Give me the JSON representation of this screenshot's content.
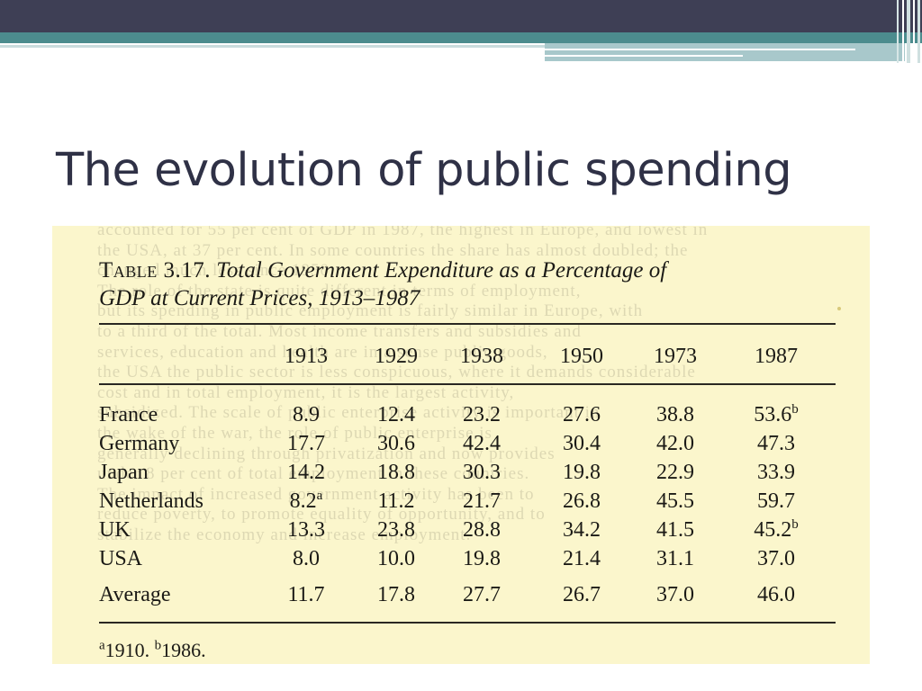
{
  "slide": {
    "title": "The evolution of public spending"
  },
  "scan": {
    "bleed_through_lines": [
      "accounted for 55 per cent of GDP in 1987, the highest in Europe, and lowest in",
      "the USA, at 37 per cent. In some countries the share has almost doubled; the",
      "changed much less since 1950.",
      "  The role of the state is quite different in terms of employment,",
      "but its spending in public employment is fairly similar in Europe, with",
      "to a third of the total. Most income transfers and subsidies and",
      "services, education and health are in a sense public goods,",
      "the USA the public sector is less conspicuous, where it demands considerable",
      "cost and in total employment, it is the largest activity,",
      "subsidized. The scale of public enterprise activity is important in",
      "the wake of the war, the role of public enterprise is",
      "generally declining through privatization and now provides",
      "under 8 per cent of total employment in these countries.",
      "  The impact of increased government activity has been to",
      "reduce poverty, to promote equality of opportunity, and to",
      "stabilize the economy and increase employment."
    ],
    "table": {
      "label": "Table 3.17.",
      "caption_line1": "Total Government Expenditure as a Percentage of",
      "caption_line2": "GDP at Current Prices, 1913–1987",
      "headers": [
        "",
        "1913",
        "1929",
        "1938",
        "1950",
        "1973",
        "1987"
      ],
      "rows": [
        {
          "country": "France",
          "values": [
            "8.9",
            "12.4",
            "23.2",
            "27.6",
            "38.8",
            "53.6"
          ],
          "sup": [
            "",
            "",
            "",
            "",
            "",
            "b"
          ]
        },
        {
          "country": "Germany",
          "values": [
            "17.7",
            "30.6",
            "42.4",
            "30.4",
            "42.0",
            "47.3"
          ],
          "sup": [
            "",
            "",
            "",
            "",
            "",
            ""
          ]
        },
        {
          "country": "Japan",
          "values": [
            "14.2",
            "18.8",
            "30.3",
            "19.8",
            "22.9",
            "33.9"
          ],
          "sup": [
            "",
            "",
            "",
            "",
            "",
            ""
          ]
        },
        {
          "country": "Netherlands",
          "values": [
            "8.2",
            "11.2",
            "21.7",
            "26.8",
            "45.5",
            "59.7"
          ],
          "sup": [
            "a",
            "",
            "",
            "",
            "",
            ""
          ]
        },
        {
          "country": "UK",
          "values": [
            "13.3",
            "23.8",
            "28.8",
            "34.2",
            "41.5",
            "45.2"
          ],
          "sup": [
            "",
            "",
            "",
            "",
            "",
            "b"
          ]
        },
        {
          "country": "USA",
          "values": [
            "8.0",
            "10.0",
            "19.8",
            "21.4",
            "31.1",
            "37.0"
          ],
          "sup": [
            "",
            "",
            "",
            "",
            "",
            ""
          ]
        },
        {
          "country": "Average",
          "values": [
            "11.7",
            "17.8",
            "27.7",
            "26.7",
            "37.0",
            "46.0"
          ],
          "sup": [
            "",
            "",
            "",
            "",
            "",
            ""
          ]
        }
      ],
      "footnote_a_mark": "a",
      "footnote_a_text": "1910.",
      "footnote_b_mark": "b",
      "footnote_b_text": "1986."
    }
  }
}
